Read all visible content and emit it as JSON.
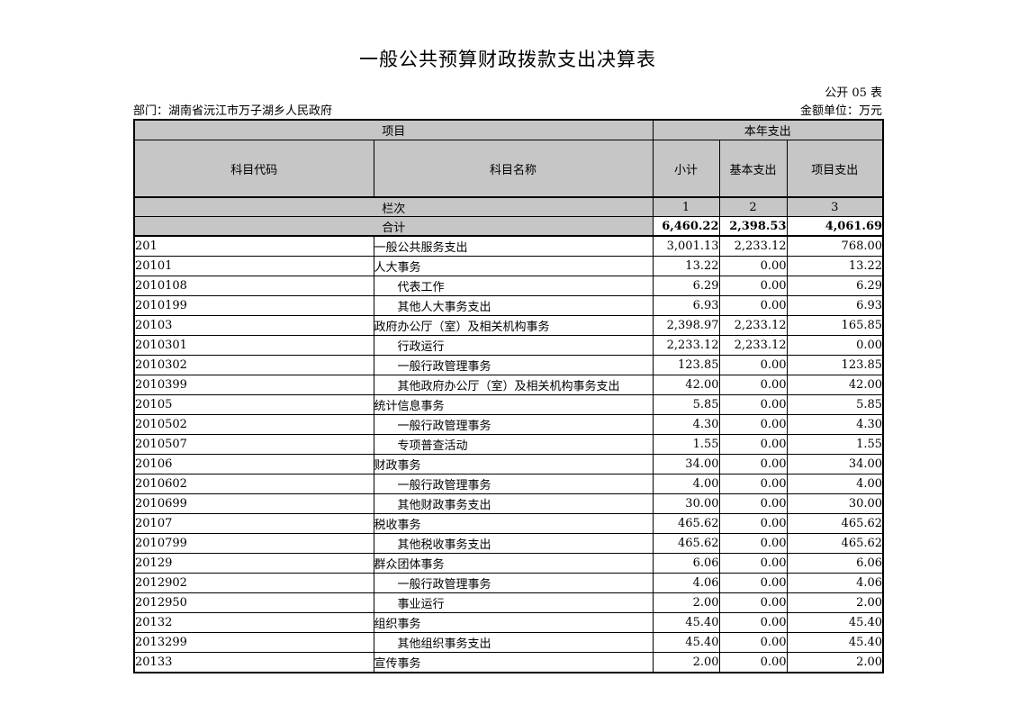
{
  "page": {
    "title": "一般公共预算财政拨款支出决算表",
    "sheet_code": "公开 05 表",
    "department": "部门：湖南省沅江市万子湖乡人民政府",
    "unit": "金额单位：万元"
  },
  "colors": {
    "header_bg": "#c6c6c6",
    "border": "#000000",
    "text": "#000000",
    "page_bg": "#ffffff"
  },
  "table": {
    "header": {
      "project_group": "项目",
      "year_expense_group": "本年支出",
      "subject_code": "科目代码",
      "subject_name": "科目名称",
      "subtotal": "小计",
      "basic_expense": "基本支出",
      "project_expense": "项目支出",
      "lane_label": "栏次",
      "lane_numbers": [
        "1",
        "2",
        "3"
      ],
      "total_label": "合计"
    },
    "total_row": {
      "subtotal": "6,460.22",
      "basic": "2,398.53",
      "project": "4,061.69"
    },
    "rows": [
      {
        "code": "201",
        "name": "一般公共服务支出",
        "indent": 0,
        "subtotal": "3,001.13",
        "basic": "2,233.12",
        "project": "768.00"
      },
      {
        "code": "20101",
        "name": "人大事务",
        "indent": 0,
        "subtotal": "13.22",
        "basic": "0.00",
        "project": "13.22"
      },
      {
        "code": "2010108",
        "name": "代表工作",
        "indent": 1,
        "subtotal": "6.29",
        "basic": "0.00",
        "project": "6.29"
      },
      {
        "code": "2010199",
        "name": "其他人大事务支出",
        "indent": 1,
        "subtotal": "6.93",
        "basic": "0.00",
        "project": "6.93"
      },
      {
        "code": "20103",
        "name": "政府办公厅（室）及相关机构事务",
        "indent": 0,
        "subtotal": "2,398.97",
        "basic": "2,233.12",
        "project": "165.85"
      },
      {
        "code": "2010301",
        "name": "行政运行",
        "indent": 1,
        "subtotal": "2,233.12",
        "basic": "2,233.12",
        "project": "0.00"
      },
      {
        "code": "2010302",
        "name": "一般行政管理事务",
        "indent": 1,
        "subtotal": "123.85",
        "basic": "0.00",
        "project": "123.85"
      },
      {
        "code": "2010399",
        "name": "其他政府办公厅（室）及相关机构事务支出",
        "indent": 1,
        "subtotal": "42.00",
        "basic": "0.00",
        "project": "42.00"
      },
      {
        "code": "20105",
        "name": "统计信息事务",
        "indent": 0,
        "subtotal": "5.85",
        "basic": "0.00",
        "project": "5.85"
      },
      {
        "code": "2010502",
        "name": "一般行政管理事务",
        "indent": 1,
        "subtotal": "4.30",
        "basic": "0.00",
        "project": "4.30"
      },
      {
        "code": "2010507",
        "name": "专项普查活动",
        "indent": 1,
        "subtotal": "1.55",
        "basic": "0.00",
        "project": "1.55"
      },
      {
        "code": "20106",
        "name": "财政事务",
        "indent": 0,
        "subtotal": "34.00",
        "basic": "0.00",
        "project": "34.00"
      },
      {
        "code": "2010602",
        "name": "一般行政管理事务",
        "indent": 1,
        "subtotal": "4.00",
        "basic": "0.00",
        "project": "4.00"
      },
      {
        "code": "2010699",
        "name": "其他财政事务支出",
        "indent": 1,
        "subtotal": "30.00",
        "basic": "0.00",
        "project": "30.00"
      },
      {
        "code": "20107",
        "name": "税收事务",
        "indent": 0,
        "subtotal": "465.62",
        "basic": "0.00",
        "project": "465.62"
      },
      {
        "code": "2010799",
        "name": "其他税收事务支出",
        "indent": 1,
        "subtotal": "465.62",
        "basic": "0.00",
        "project": "465.62"
      },
      {
        "code": "20129",
        "name": "群众团体事务",
        "indent": 0,
        "subtotal": "6.06",
        "basic": "0.00",
        "project": "6.06"
      },
      {
        "code": "2012902",
        "name": "一般行政管理事务",
        "indent": 1,
        "subtotal": "4.06",
        "basic": "0.00",
        "project": "4.06"
      },
      {
        "code": "2012950",
        "name": "事业运行",
        "indent": 1,
        "subtotal": "2.00",
        "basic": "0.00",
        "project": "2.00"
      },
      {
        "code": "20132",
        "name": "组织事务",
        "indent": 0,
        "subtotal": "45.40",
        "basic": "0.00",
        "project": "45.40"
      },
      {
        "code": "2013299",
        "name": "其他组织事务支出",
        "indent": 1,
        "subtotal": "45.40",
        "basic": "0.00",
        "project": "45.40"
      },
      {
        "code": "20133",
        "name": "宣传事务",
        "indent": 0,
        "subtotal": "2.00",
        "basic": "0.00",
        "project": "2.00"
      }
    ]
  }
}
